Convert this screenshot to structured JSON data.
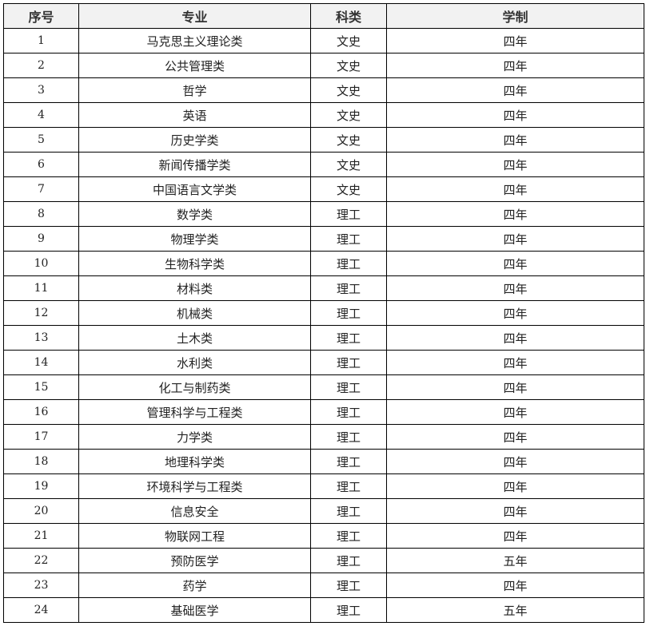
{
  "headers": [
    "序号",
    "专业",
    "科类",
    "学制"
  ],
  "rows": [
    [
      "1",
      "马克思主义理论类",
      "文史",
      "四年"
    ],
    [
      "2",
      "公共管理类",
      "文史",
      "四年"
    ],
    [
      "3",
      "哲学",
      "文史",
      "四年"
    ],
    [
      "4",
      "英语",
      "文史",
      "四年"
    ],
    [
      "5",
      "历史学类",
      "文史",
      "四年"
    ],
    [
      "6",
      "新闻传播学类",
      "文史",
      "四年"
    ],
    [
      "7",
      "中国语言文学类",
      "文史",
      "四年"
    ],
    [
      "8",
      "数学类",
      "理工",
      "四年"
    ],
    [
      "9",
      "物理学类",
      "理工",
      "四年"
    ],
    [
      "10",
      "生物科学类",
      "理工",
      "四年"
    ],
    [
      "11",
      "材料类",
      "理工",
      "四年"
    ],
    [
      "12",
      "机械类",
      "理工",
      "四年"
    ],
    [
      "13",
      "土木类",
      "理工",
      "四年"
    ],
    [
      "14",
      "水利类",
      "理工",
      "四年"
    ],
    [
      "15",
      "化工与制药类",
      "理工",
      "四年"
    ],
    [
      "16",
      "管理科学与工程类",
      "理工",
      "四年"
    ],
    [
      "17",
      "力学类",
      "理工",
      "四年"
    ],
    [
      "18",
      "地理科学类",
      "理工",
      "四年"
    ],
    [
      "19",
      "环境科学与工程类",
      "理工",
      "四年"
    ],
    [
      "20",
      "信息安全",
      "理工",
      "四年"
    ],
    [
      "21",
      "物联网工程",
      "理工",
      "四年"
    ],
    [
      "22",
      "预防医学",
      "理工",
      "五年"
    ],
    [
      "23",
      "药学",
      "理工",
      "四年"
    ],
    [
      "24",
      "基础医学",
      "理工",
      "五年"
    ]
  ]
}
